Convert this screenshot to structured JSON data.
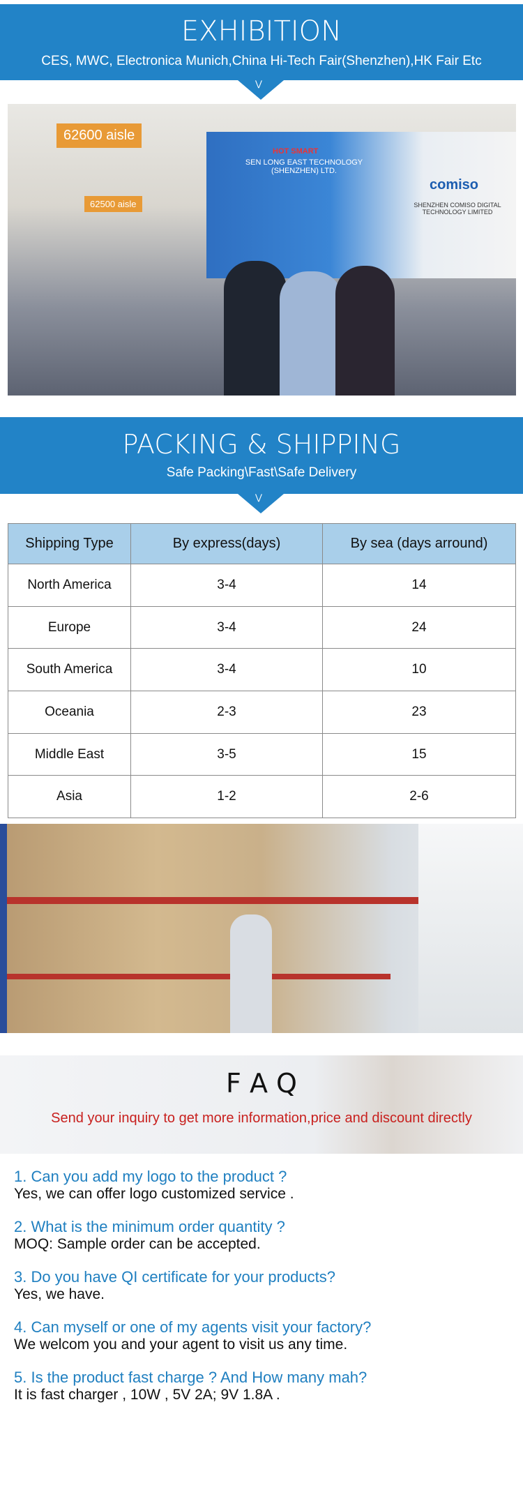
{
  "exhibition": {
    "title": "EXHIBITION",
    "subtitle": "CES, MWC, Electronica Munich,China Hi-Tech Fair(Shenzhen),HK Fair Etc",
    "photo_signs": [
      "62600 aisle",
      "62500 aisle",
      "SEN LONG EAST TECHNOLOGY (SHENZHEN) LTD.",
      "SHENZHEN COMISO DIGITAL TECHNOLOGY LIMITED",
      "comiso",
      "HOT SMART"
    ]
  },
  "packing": {
    "title": "PACKING  & SHIPPING",
    "subtitle": "Safe Packing\\Fast\\Safe Delivery"
  },
  "shipping_table": {
    "headers": [
      "Shipping Type",
      "By express(days)",
      "By sea (days arround)"
    ],
    "rows": [
      [
        "North America",
        "3-4",
        "14"
      ],
      [
        "Europe",
        "3-4",
        "24"
      ],
      [
        "South America",
        "3-4",
        "10"
      ],
      [
        "Oceania",
        "2-3",
        "23"
      ],
      [
        "Middle East",
        "3-5",
        "15"
      ],
      [
        "Asia",
        "1-2",
        "2-6"
      ]
    ]
  },
  "faq": {
    "title": "F A Q",
    "subtitle": "Send your inquiry to get more information,price and discount directly",
    "items": [
      {
        "q": "1. Can you add my logo to the product ?",
        "a": "Yes, we can offer logo customized service ."
      },
      {
        "q": "2. What is the minimum order quantity ?",
        "a": "MOQ: Sample order can be accepted."
      },
      {
        "q": "3. Do you have QI certificate for your products?",
        "a": "Yes, we have."
      },
      {
        "q": "4. Can myself or one of my agents visit your factory?",
        "a": "We welcom you and your agent to visit us any time."
      },
      {
        "q": "5. Is the product fast charge ? And How many mah?",
        "a": "It is fast charger , 10W , 5V 2A; 9V 1.8A ."
      }
    ]
  },
  "colors": {
    "brand_blue": "#2283c7",
    "table_header": "#a9cfea",
    "faq_question": "#1f7fc0",
    "faq_subtitle": "#c8201e"
  }
}
